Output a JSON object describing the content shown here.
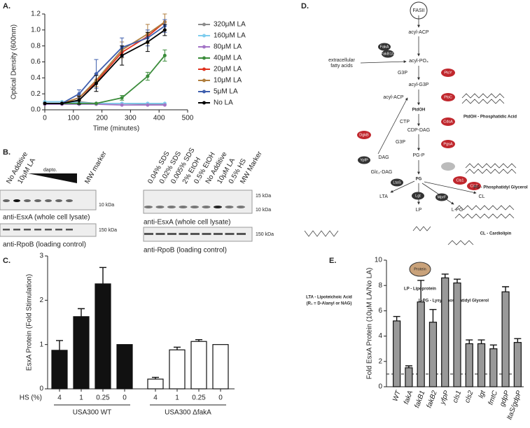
{
  "panel_labels": [
    "A.",
    "B.",
    "C.",
    "D.",
    "E."
  ],
  "chart_data": [
    {
      "type": "line",
      "x_label": "Time (minutes)",
      "y_label": "Optical Density (600nm)",
      "x": [
        0,
        60,
        120,
        180,
        270,
        360,
        420
      ],
      "xlim": [
        0,
        500
      ],
      "xticks": [
        0,
        100,
        200,
        300,
        400,
        500
      ],
      "ylim": [
        0,
        1.2
      ],
      "yticks": [
        {
          "value": 0,
          "label": "0.0"
        },
        0.2,
        0.4,
        0.6,
        0.8,
        {
          "value": 1,
          "label": "1.0"
        },
        1.2
      ],
      "legend": "outside right",
      "series": [
        {
          "name": "320μM LA",
          "color": "#8c8c8c",
          "values": [
            0.1,
            0.1,
            0.1,
            0.08,
            0.08,
            0.07,
            0.07
          ]
        },
        {
          "name": "160μM LA",
          "color": "#7fcdee",
          "values": [
            0.1,
            0.1,
            0.09,
            0.08,
            0.08,
            0.08,
            0.08
          ]
        },
        {
          "name": "80μM LA",
          "color": "#a374c6",
          "values": [
            0.07,
            0.07,
            0.07,
            0.07,
            0.06,
            0.06,
            0.06
          ]
        },
        {
          "name": "40μM LA",
          "color": "#3b8c3b",
          "values": [
            0.08,
            0.08,
            0.08,
            0.08,
            0.15,
            0.42,
            0.68
          ],
          "errors": [
            0,
            0,
            0,
            0,
            0.03,
            0.05,
            0.07
          ]
        },
        {
          "name": "20μM LA",
          "color": "#e0321f",
          "values": [
            0.08,
            0.08,
            0.15,
            0.35,
            0.72,
            0.92,
            1.1
          ]
        },
        {
          "name": "10μM LA",
          "color": "#b07e3e",
          "values": [
            0.08,
            0.08,
            0.15,
            0.37,
            0.75,
            0.95,
            1.1
          ],
          "errors": [
            0,
            0,
            0.03,
            0.08,
            0.1,
            0.12,
            0.1
          ]
        },
        {
          "name": "5μM LA",
          "color": "#3f5fae",
          "values": [
            0.08,
            0.08,
            0.2,
            0.45,
            0.78,
            0.9,
            1.05
          ],
          "errors": [
            0,
            0,
            0.05,
            0.18,
            0.12,
            0.1,
            0.08
          ]
        },
        {
          "name": "No LA",
          "color": "#000000",
          "values": [
            0.08,
            0.08,
            0.12,
            0.33,
            0.68,
            0.85,
            1.0
          ],
          "errors": [
            0,
            0,
            0.05,
            0.1,
            0.12,
            0.12,
            0.07
          ]
        }
      ]
    },
    {
      "type": "bar",
      "y_label": "EsxA Protein (Fold Stimulation)",
      "x_label": "HS (%)",
      "categories": [
        "4",
        "1",
        "0.25",
        "0",
        "4",
        "1",
        "0.25",
        "0"
      ],
      "values": [
        0.87,
        1.63,
        2.37,
        1.0,
        0.22,
        0.88,
        1.07,
        1.0
      ],
      "errors": [
        0.22,
        0.18,
        0.37,
        0,
        0.04,
        0.06,
        0.04,
        0
      ],
      "colors": [
        "#111111",
        "#111111",
        "#111111",
        "#111111",
        "#ffffff",
        "#ffffff",
        "#ffffff",
        "#ffffff"
      ],
      "groups": [
        "USA300 WT",
        "USA300 ΔfakA"
      ],
      "ylim": [
        0,
        3
      ],
      "yticks": [
        0,
        1,
        2,
        3
      ]
    },
    {
      "type": "bar",
      "y_label": "Fold EsxA Protein (10μM LA/No LA)",
      "categories": [
        "WT",
        "fakA",
        "fakB1",
        "fakB2",
        "yfpP",
        "cls1",
        "cls2",
        "lgt",
        "fmtC",
        "gdpP",
        "ltaS/gdpP"
      ],
      "values": [
        5.2,
        1.5,
        6.7,
        5.1,
        8.6,
        8.2,
        3.4,
        3.4,
        3.0,
        7.5,
        3.5
      ],
      "errors": [
        0.35,
        0.15,
        1.7,
        1.0,
        0.3,
        0.3,
        0.3,
        0.3,
        0.3,
        0.4,
        0.3
      ],
      "color": "#999999",
      "ref_line": 1,
      "ylim": [
        0,
        10
      ],
      "yticks": [
        0,
        2,
        4,
        6,
        8,
        10
      ]
    }
  ],
  "blots": {
    "left": {
      "lanes": [
        "No Additive",
        "10μM LA",
        "MW marker"
      ],
      "gradient": "dapto.",
      "top_marker": "10 kDa",
      "top_caption": "anti-EsxA (whole cell lysate)",
      "bottom_marker": "150 kDa",
      "bottom_caption": "anti-RpoB (loading control)"
    },
    "right": {
      "lanes": [
        "0.04% SDS",
        "0.02% SDS",
        "0.005% SDS",
        "2% EtOH",
        "0.5% EtOH",
        "No Additive",
        "10μM LA",
        "0.5% HS",
        "MW Marker"
      ],
      "top_markers": [
        "15 kDa",
        "10 kDa"
      ],
      "top_caption": "anti-EsxA (whole cell lysate)",
      "bottom_marker": "150 kDa",
      "bottom_caption": "anti-RpoB (loading control)"
    }
  },
  "diagram": {
    "metabolites": [
      "FASII",
      "acyl-ACP",
      "extracellular",
      "fatty acids",
      "acyl-PO₄",
      "G3P",
      "acyl-G3P",
      "acyl-ACP",
      "PtdOH",
      "CTP",
      "CDP-DAG",
      "G3P",
      "PG-P",
      "DAG",
      "Glc₂-DAG",
      "PG",
      "LTA",
      "LP",
      "CL",
      "L-PG"
    ],
    "enzymes": [
      "PlsY",
      "PlsC",
      "CdsA",
      "PgsA",
      "DgkB",
      "Cls1",
      "Cls2"
    ],
    "proteins": [
      "FakA",
      "FakB1/2",
      "YpfP",
      "LtaS",
      "Lgt",
      "MprF"
    ],
    "captions": [
      "PtdOH - Phosphatidic Acid",
      "PG - Phosphatidyl Glycerol",
      "CL - Cardiolipin",
      "LTA - Lipoteichoic Acid",
      "(R₁ = D-Alanyl or NAG)",
      "LP - Lipoprotein",
      "L-PG - Lysyl-Phosphatidyl Glycerol",
      "Protein"
    ]
  }
}
